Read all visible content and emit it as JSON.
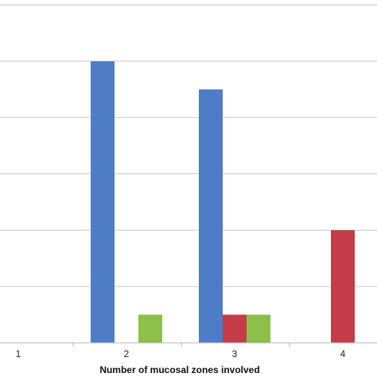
{
  "chart_data": {
    "type": "bar",
    "title": "",
    "xlabel": "Number of mucosal zones involved",
    "ylabel": "",
    "categories": [
      "1",
      "2",
      "3",
      "4"
    ],
    "series": [
      {
        "values": [
          0,
          10,
          9,
          0
        ],
        "color": "#4F7CC7"
      },
      {
        "values": [
          0,
          0,
          1,
          4
        ],
        "color": "#C43C48"
      },
      {
        "values": [
          0,
          1,
          1,
          0
        ],
        "color": "#8CC04A"
      }
    ],
    "ylim": [
      0,
      12
    ],
    "y_tick_step": 2,
    "grid": true
  }
}
